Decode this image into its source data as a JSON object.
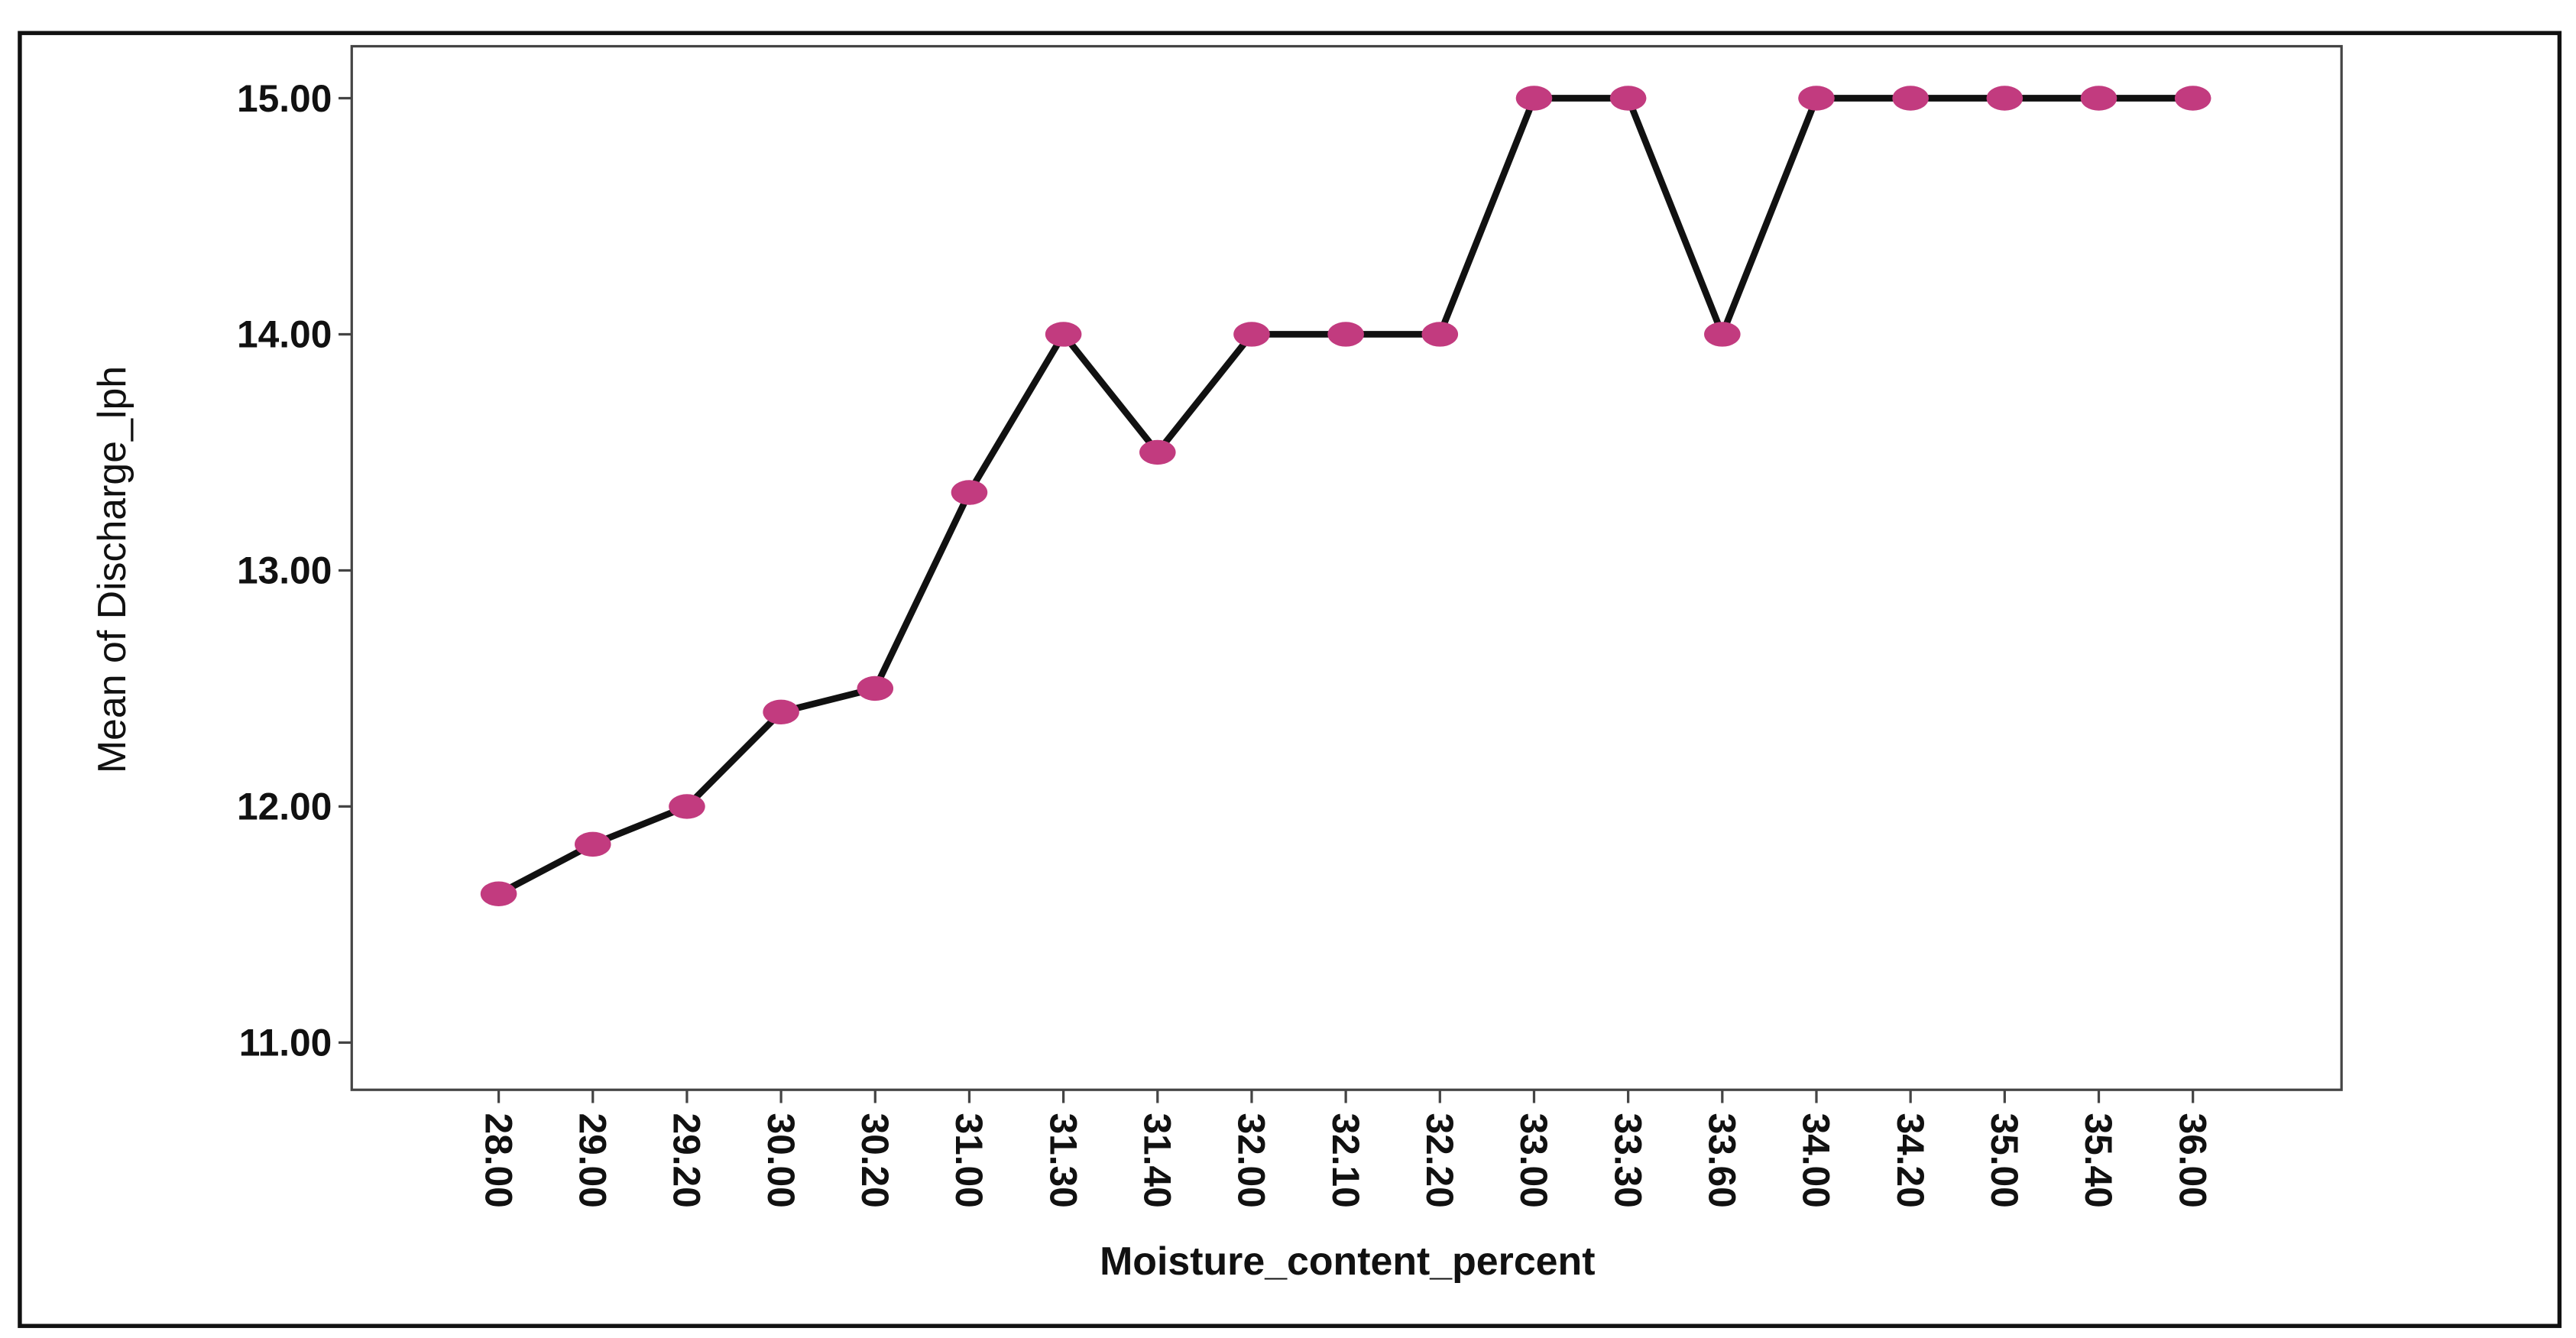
{
  "chart_data": {
    "type": "line",
    "x_label": "Moisture_content_percent",
    "y_label": "Mean of Discharge_lph",
    "categories": [
      "28.00",
      "29.00",
      "29.20",
      "30.00",
      "30.20",
      "31.00",
      "31.30",
      "31.40",
      "32.00",
      "32.10",
      "32.20",
      "33.00",
      "33.30",
      "33.60",
      "34.00",
      "34.20",
      "35.00",
      "35.40",
      "36.00"
    ],
    "values": [
      11.63,
      11.84,
      12.0,
      12.4,
      12.5,
      13.33,
      14.0,
      13.5,
      14.0,
      14.0,
      14.0,
      15.0,
      15.0,
      14.0,
      15.0,
      15.0,
      15.0,
      15.0,
      15.0
    ],
    "color": "#c23b7f",
    "line_color": "#111111",
    "ylim": [
      10.8,
      15.22
    ],
    "yticks": [
      {
        "value": 11,
        "label": "11.00"
      },
      {
        "value": 12,
        "label": "12.00"
      },
      {
        "value": 13,
        "label": "13.00"
      },
      {
        "value": 14,
        "label": "14.00"
      },
      {
        "value": 15,
        "label": "15.00"
      }
    ]
  }
}
